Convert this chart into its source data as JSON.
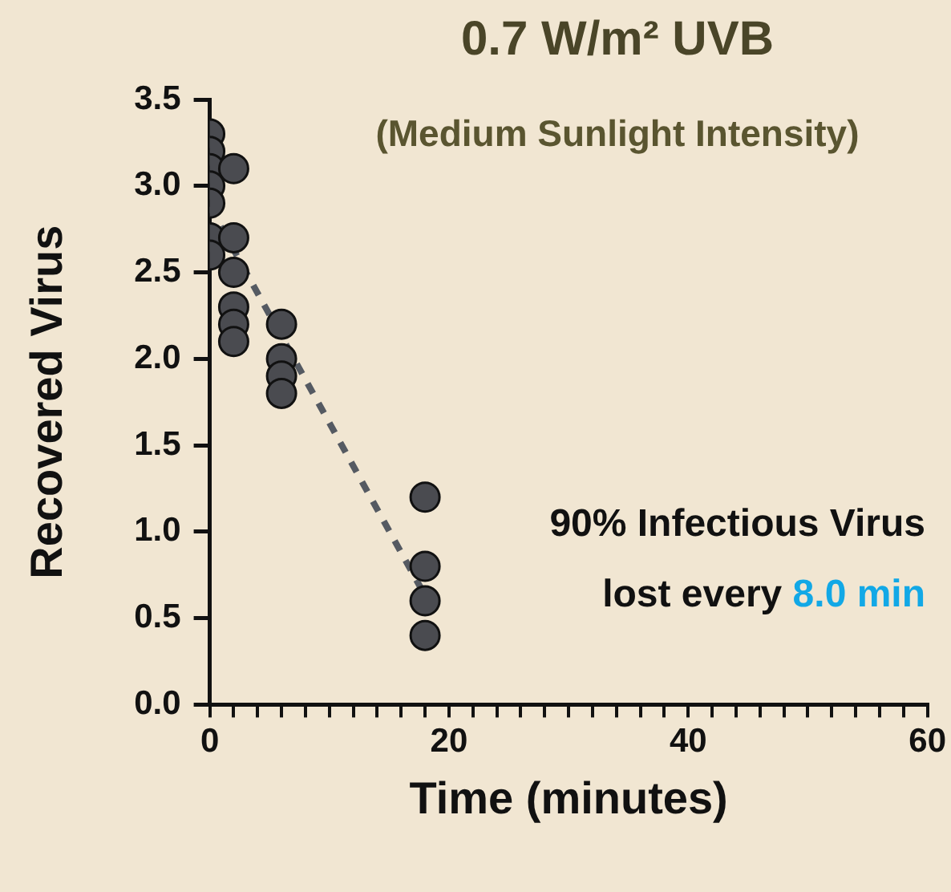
{
  "chart_data": {
    "type": "scatter",
    "title": "0.7 W/m² UVB",
    "subtitle": "(Medium Sunlight Intensity)",
    "xlabel": "Time (minutes)",
    "ylabel": "Recovered Virus",
    "annotations": [
      "90% Infectious Virus",
      "lost every",
      "8.0 min"
    ],
    "series": [
      {
        "type": "scatter",
        "color": "#4a4b50",
        "marker": "circle",
        "x": [
          0,
          0,
          0,
          0,
          0,
          0,
          0,
          2,
          2,
          2,
          2,
          2,
          2,
          6,
          6,
          6,
          6,
          18,
          18,
          18,
          18
        ],
        "values": [
          3.3,
          3.2,
          3.1,
          3.0,
          2.9,
          2.7,
          2.6,
          3.1,
          2.7,
          2.5,
          2.3,
          2.2,
          2.1,
          2.2,
          2.0,
          1.9,
          1.8,
          1.2,
          0.8,
          0.6,
          0.4
        ]
      },
      {
        "type": "line",
        "color": "#555a62",
        "marker": "none",
        "line_style": "dashed",
        "x": [
          0,
          18
        ],
        "values": [
          2.88,
          0.63
        ]
      }
    ],
    "xlim": [
      0,
      60
    ],
    "xticks": [
      0,
      {
        "value": 2,
        "label": null
      },
      {
        "value": 4,
        "label": null
      },
      {
        "value": 6,
        "label": null
      },
      {
        "value": 8,
        "label": null
      },
      {
        "value": 10,
        "label": null
      },
      {
        "value": 12,
        "label": null
      },
      {
        "value": 14,
        "label": null
      },
      {
        "value": 16,
        "label": null
      },
      {
        "value": 18,
        "label": null
      },
      20,
      {
        "value": 22,
        "label": null
      },
      {
        "value": 24,
        "label": null
      },
      {
        "value": 26,
        "label": null
      },
      {
        "value": 28,
        "label": null
      },
      {
        "value": 30,
        "label": null
      },
      {
        "value": 32,
        "label": null
      },
      {
        "value": 34,
        "label": null
      },
      {
        "value": 36,
        "label": null
      },
      {
        "value": 38,
        "label": null
      },
      40,
      {
        "value": 42,
        "label": null
      },
      {
        "value": 44,
        "label": null
      },
      {
        "value": 46,
        "label": null
      },
      {
        "value": 48,
        "label": null
      },
      {
        "value": 50,
        "label": null
      },
      {
        "value": 52,
        "label": null
      },
      {
        "value": 54,
        "label": null
      },
      {
        "value": 56,
        "label": null
      },
      {
        "value": 58,
        "label": null
      },
      60
    ],
    "ylim": [
      0,
      3.5
    ],
    "yticks": [
      {
        "value": 0,
        "label": "0.0"
      },
      {
        "value": 0.5,
        "label": "0.5"
      },
      {
        "value": 1,
        "label": "1.0"
      },
      {
        "value": 1.5,
        "label": "1.5"
      },
      {
        "value": 2,
        "label": "2.0"
      },
      {
        "value": 2.5,
        "label": "2.5"
      },
      {
        "value": 3,
        "label": "3.0"
      },
      {
        "value": 3.5,
        "label": "3.5"
      }
    ],
    "grid": false,
    "legend": false
  }
}
